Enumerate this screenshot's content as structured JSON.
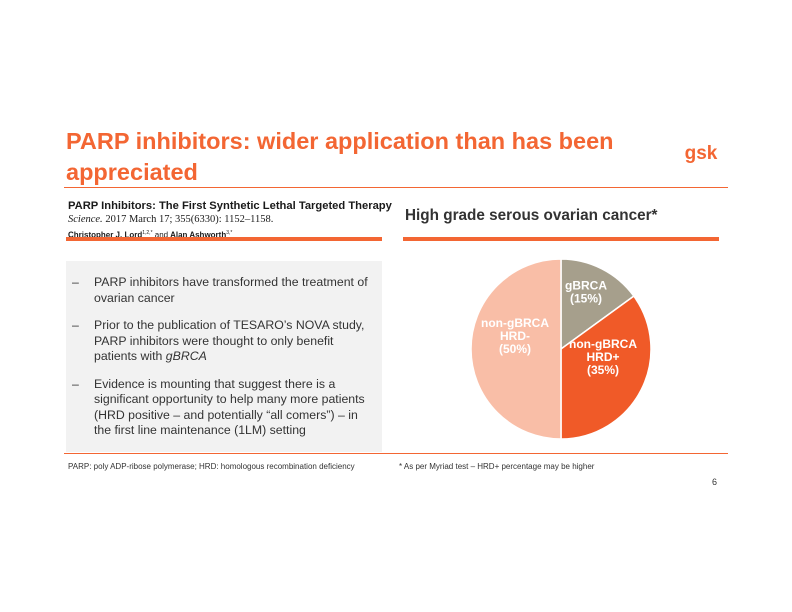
{
  "header": {
    "title": "PARP inhibitors: wider application than has been appreciated",
    "logo_text": "gsk"
  },
  "paper": {
    "title": "PARP Inhibitors: The First Synthetic Lethal Targeted Therapy",
    "journal": "Science.",
    "citation": "2017 March 17; 355(6330): 1152–1158.",
    "author1": "Christopher J. Lord",
    "author1_sup": "1,2,*",
    "and": "and",
    "author2": "Alan Ashworth",
    "author2_sup": "3,*"
  },
  "bullets": [
    {
      "dash": "–",
      "text": "PARP inhibitors have transformed the treatment of ovarian cancer"
    },
    {
      "dash": "–",
      "text_before": "Prior to the publication of TESARO’s NOVA study, PARP inhibitors were thought to only benefit patients with ",
      "text_italic": "gBRCA"
    },
    {
      "dash": "–",
      "text": "Evidence is mounting that suggest there is a significant opportunity to help many more patients (HRD positive – and potentially “all comers”) – in the first line maintenance (1LM) setting"
    }
  ],
  "footnotes": {
    "left": "PARP: poly ADP-ribose polymerase; HRD: homologous recombination deficiency",
    "right": "* As per Myriad test – HRD+ percentage may be higher"
  },
  "page_number": "6",
  "colors": {
    "accent": "#f36633",
    "gbrca": "#a69f8c",
    "hrd_pos": "#f05a28",
    "hrd_neg": "#f9bea7"
  },
  "chart_data": {
    "type": "pie",
    "title": "High grade serous ovarian cancer*",
    "slices": [
      {
        "label_lines": [
          "gBRCA",
          "(15%)"
        ],
        "value": 15,
        "color": "#a69f8c"
      },
      {
        "label_lines": [
          "non-gBRCA",
          "HRD+",
          "(35%)"
        ],
        "value": 35,
        "color": "#f05a28"
      },
      {
        "label_lines": [
          "non-gBRCA",
          "HRD-",
          "(50%)"
        ],
        "value": 50,
        "color": "#f9bea7"
      }
    ]
  }
}
